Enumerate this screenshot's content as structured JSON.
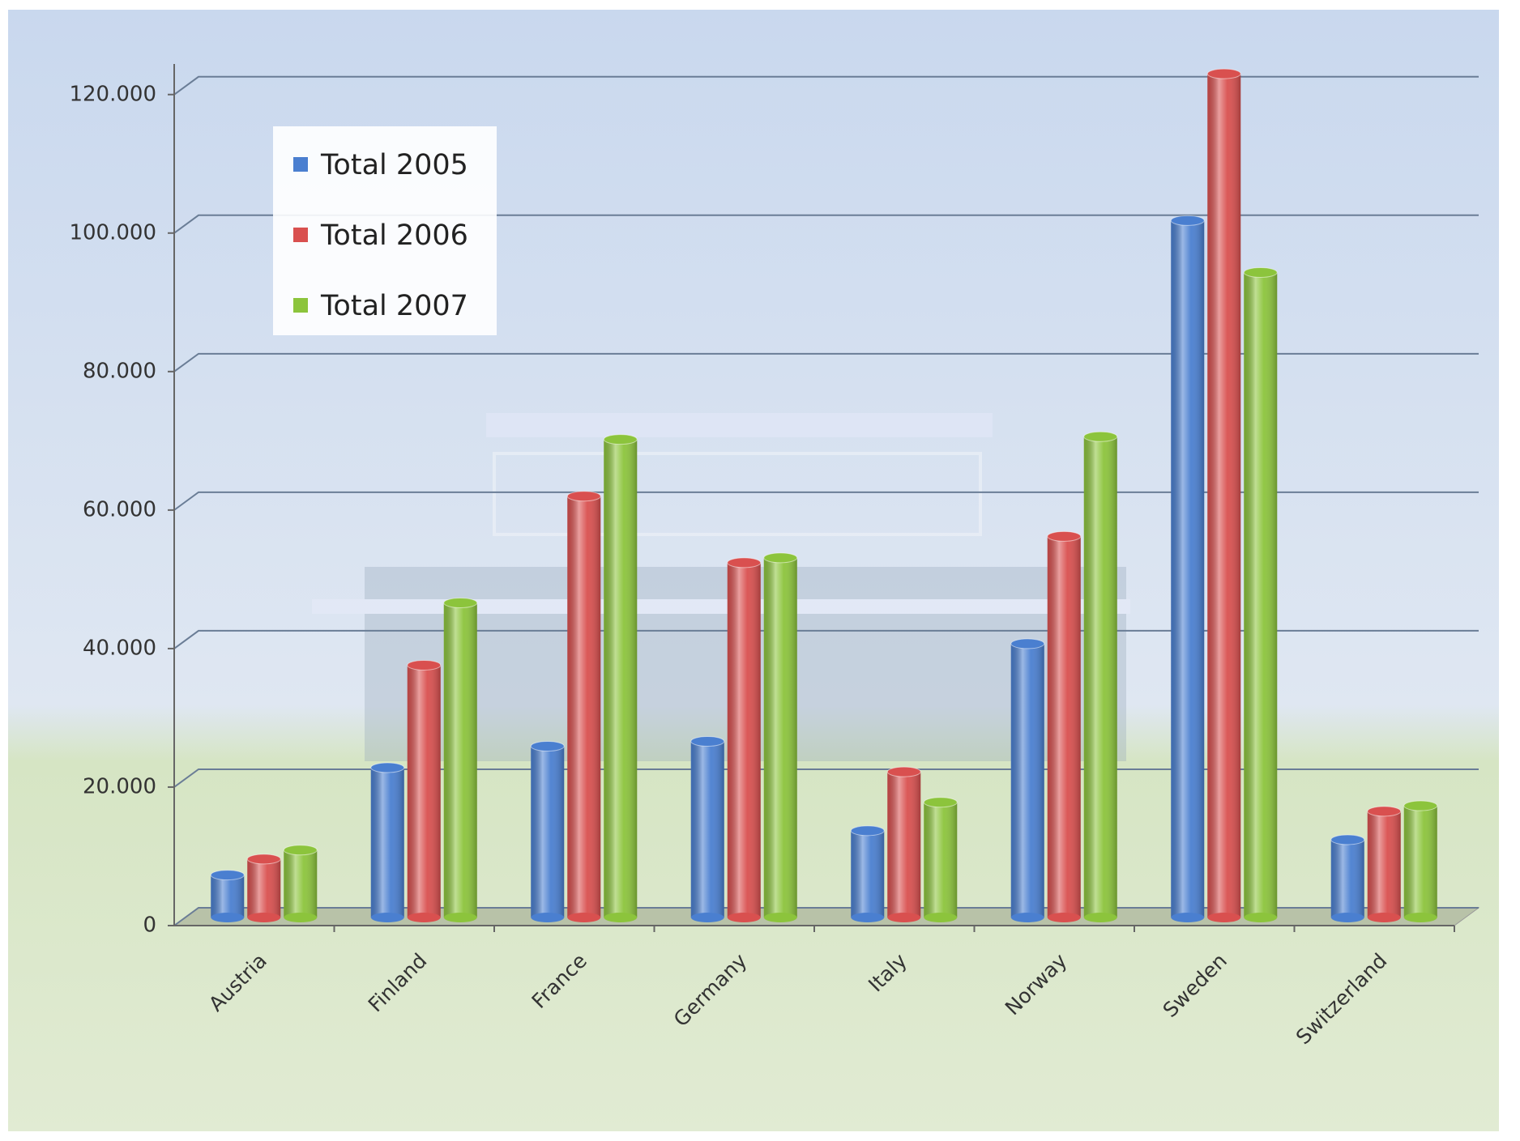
{
  "chart_data": {
    "type": "bar",
    "categories": [
      "Austria",
      "Finland",
      "France",
      "Germany",
      "Italy",
      "Norway",
      "Sweden",
      "Switzerland"
    ],
    "series": [
      {
        "name": "Total 2005",
        "color": "#4a7fd0",
        "values": [
          7300,
          22800,
          25900,
          26600,
          13700,
          40700,
          101800,
          12400
        ]
      },
      {
        "name": "Total 2006",
        "color": "#d9504f",
        "values": [
          9600,
          37600,
          62000,
          52400,
          22200,
          56200,
          123000,
          16500
        ]
      },
      {
        "name": "Total 2007",
        "color": "#8cc43c",
        "values": [
          10900,
          46600,
          70200,
          53100,
          17800,
          70600,
          94300,
          17300
        ]
      }
    ],
    "ylim": [
      0,
      125000
    ],
    "yticks": [
      0,
      {
        "value": 20000,
        "label": "20.000"
      },
      {
        "value": 40000,
        "label": "40.000"
      },
      {
        "value": 60000,
        "label": "60.000"
      },
      {
        "value": 80000,
        "label": "80.000"
      },
      {
        "value": 100000,
        "label": "100.000"
      },
      {
        "value": 120000,
        "label": "120.000"
      }
    ],
    "grid": true
  }
}
